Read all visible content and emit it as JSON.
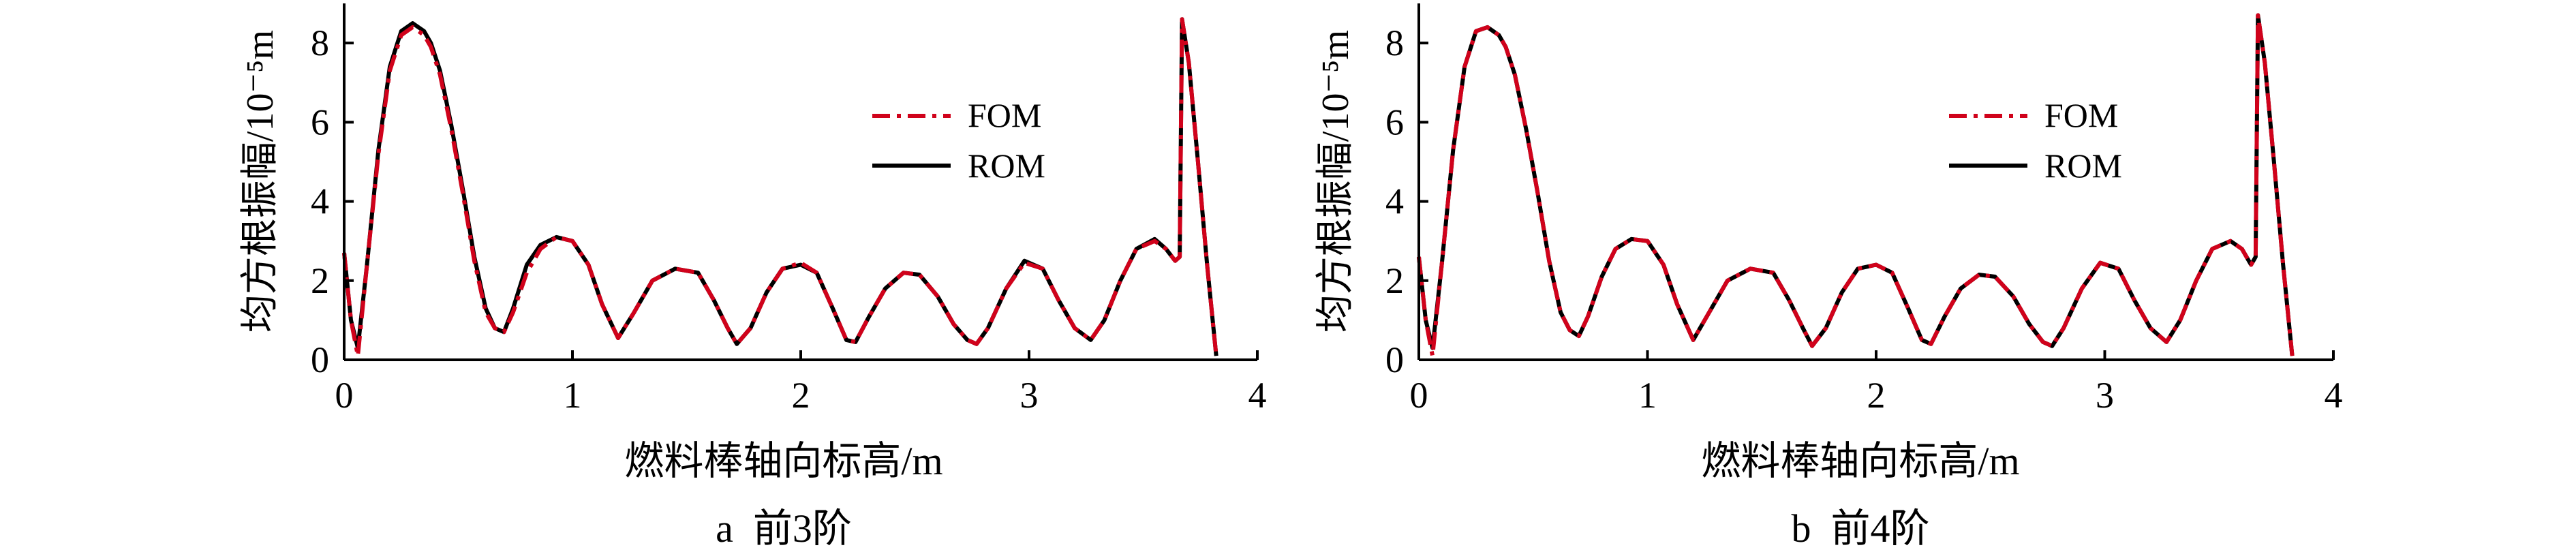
{
  "chart_data": [
    {
      "type": "line",
      "panel": "a",
      "caption": "a  前3阶",
      "xlabel": "燃料棒轴向标高/m",
      "ylabel": "均方根振幅/10⁻⁵m",
      "xlim": [
        0,
        4
      ],
      "ylim": [
        0,
        9
      ],
      "xticks": [
        "0",
        "1",
        "2",
        "3",
        "4"
      ],
      "yticks": [
        "0",
        "2",
        "4",
        "6",
        "8"
      ],
      "legend_position": "right",
      "grid": false,
      "series": [
        {
          "name": "FOM",
          "color": "#d0021b",
          "style": "dash-dot",
          "x": [
            0,
            0.03,
            0.06,
            0.1,
            0.15,
            0.2,
            0.25,
            0.3,
            0.35,
            0.38,
            0.42,
            0.47,
            0.52,
            0.57,
            0.62,
            0.66,
            0.7,
            0.74,
            0.8,
            0.86,
            0.93,
            1.0,
            1.07,
            1.13,
            1.2,
            1.27,
            1.35,
            1.45,
            1.55,
            1.62,
            1.68,
            1.72,
            1.78,
            1.85,
            1.92,
            2.0,
            2.07,
            2.14,
            2.2,
            2.24,
            2.3,
            2.37,
            2.45,
            2.52,
            2.6,
            2.67,
            2.73,
            2.77,
            2.82,
            2.9,
            2.98,
            3.06,
            3.13,
            3.2,
            3.27,
            3.33,
            3.4,
            3.47,
            3.55,
            3.6,
            3.64,
            3.66,
            3.67,
            3.7,
            3.74,
            3.78,
            3.82
          ],
          "y": [
            2.7,
            1.0,
            0.1,
            2.4,
            5.2,
            7.3,
            8.2,
            8.4,
            8.2,
            7.9,
            7.2,
            5.8,
            4.2,
            2.5,
            1.2,
            0.8,
            0.7,
            1.2,
            2.2,
            2.8,
            3.1,
            3.0,
            2.4,
            1.4,
            0.55,
            1.2,
            2.0,
            2.3,
            2.2,
            1.5,
            0.8,
            0.4,
            0.8,
            1.7,
            2.3,
            2.45,
            2.2,
            1.3,
            0.5,
            0.45,
            1.1,
            1.8,
            2.2,
            2.15,
            1.6,
            0.9,
            0.5,
            0.4,
            0.8,
            1.8,
            2.45,
            2.3,
            1.5,
            0.8,
            0.5,
            1.0,
            2.0,
            2.8,
            3.0,
            2.8,
            2.5,
            2.6,
            8.6,
            7.5,
            5.0,
            2.4,
            0.1
          ]
        },
        {
          "name": "ROM",
          "color": "#000000",
          "style": "solid",
          "x": [
            0,
            0.03,
            0.06,
            0.1,
            0.15,
            0.2,
            0.25,
            0.3,
            0.35,
            0.38,
            0.42,
            0.47,
            0.52,
            0.57,
            0.62,
            0.66,
            0.7,
            0.74,
            0.8,
            0.86,
            0.93,
            1.0,
            1.07,
            1.13,
            1.2,
            1.27,
            1.35,
            1.45,
            1.55,
            1.62,
            1.68,
            1.72,
            1.78,
            1.85,
            1.92,
            2.0,
            2.07,
            2.14,
            2.2,
            2.24,
            2.3,
            2.37,
            2.45,
            2.52,
            2.6,
            2.67,
            2.73,
            2.77,
            2.82,
            2.9,
            2.98,
            3.06,
            3.13,
            3.2,
            3.27,
            3.33,
            3.4,
            3.47,
            3.55,
            3.6,
            3.64,
            3.66,
            3.67,
            3.7,
            3.74,
            3.78,
            3.82
          ],
          "y": [
            2.7,
            1.0,
            0.3,
            2.4,
            5.3,
            7.4,
            8.3,
            8.5,
            8.3,
            8.0,
            7.3,
            5.9,
            4.3,
            2.6,
            1.3,
            0.8,
            0.7,
            1.3,
            2.4,
            2.9,
            3.1,
            3.0,
            2.4,
            1.4,
            0.55,
            1.2,
            2.0,
            2.3,
            2.2,
            1.5,
            0.8,
            0.4,
            0.8,
            1.7,
            2.3,
            2.4,
            2.2,
            1.3,
            0.5,
            0.45,
            1.1,
            1.8,
            2.2,
            2.15,
            1.6,
            0.9,
            0.5,
            0.4,
            0.8,
            1.8,
            2.5,
            2.3,
            1.5,
            0.8,
            0.5,
            1.0,
            2.0,
            2.8,
            3.05,
            2.8,
            2.5,
            2.6,
            8.6,
            7.5,
            5.0,
            2.4,
            0.1
          ]
        }
      ]
    },
    {
      "type": "line",
      "panel": "b",
      "caption": "b  前4阶",
      "xlabel": "燃料棒轴向标高/m",
      "ylabel": "均方根振幅/10⁻⁵m",
      "xlim": [
        0,
        4
      ],
      "ylim": [
        0,
        9
      ],
      "xticks": [
        "0",
        "1",
        "2",
        "3",
        "4"
      ],
      "yticks": [
        "0",
        "2",
        "4",
        "6",
        "8"
      ],
      "legend_position": "right",
      "grid": false,
      "series": [
        {
          "name": "FOM",
          "color": "#d0021b",
          "style": "dash-dot",
          "x": [
            0,
            0.03,
            0.06,
            0.1,
            0.15,
            0.2,
            0.25,
            0.3,
            0.35,
            0.38,
            0.42,
            0.47,
            0.52,
            0.57,
            0.62,
            0.66,
            0.7,
            0.74,
            0.8,
            0.86,
            0.93,
            1.0,
            1.07,
            1.13,
            1.2,
            1.27,
            1.35,
            1.45,
            1.55,
            1.62,
            1.68,
            1.72,
            1.78,
            1.85,
            1.92,
            2.0,
            2.07,
            2.14,
            2.2,
            2.24,
            2.3,
            2.37,
            2.45,
            2.52,
            2.6,
            2.67,
            2.73,
            2.77,
            2.82,
            2.9,
            2.98,
            3.06,
            3.13,
            3.2,
            3.27,
            3.33,
            3.4,
            3.47,
            3.55,
            3.6,
            3.64,
            3.66,
            3.67,
            3.7,
            3.74,
            3.78,
            3.82
          ],
          "y": [
            2.6,
            1.0,
            0.1,
            2.4,
            5.3,
            7.4,
            8.3,
            8.4,
            8.2,
            7.9,
            7.2,
            5.8,
            4.2,
            2.5,
            1.2,
            0.75,
            0.6,
            1.1,
            2.1,
            2.8,
            3.05,
            3.0,
            2.4,
            1.4,
            0.5,
            1.2,
            2.0,
            2.3,
            2.2,
            1.5,
            0.8,
            0.35,
            0.8,
            1.7,
            2.3,
            2.4,
            2.2,
            1.3,
            0.5,
            0.4,
            1.1,
            1.8,
            2.15,
            2.1,
            1.6,
            0.9,
            0.45,
            0.35,
            0.8,
            1.8,
            2.45,
            2.3,
            1.5,
            0.8,
            0.45,
            1.0,
            2.0,
            2.8,
            3.0,
            2.8,
            2.4,
            2.6,
            8.7,
            7.5,
            5.0,
            2.4,
            0.1
          ]
        },
        {
          "name": "ROM",
          "color": "#000000",
          "style": "solid",
          "x": [
            0,
            0.03,
            0.06,
            0.1,
            0.15,
            0.2,
            0.25,
            0.3,
            0.35,
            0.38,
            0.42,
            0.47,
            0.52,
            0.57,
            0.62,
            0.66,
            0.7,
            0.74,
            0.8,
            0.86,
            0.93,
            1.0,
            1.07,
            1.13,
            1.2,
            1.27,
            1.35,
            1.45,
            1.55,
            1.62,
            1.68,
            1.72,
            1.78,
            1.85,
            1.92,
            2.0,
            2.07,
            2.14,
            2.2,
            2.24,
            2.3,
            2.37,
            2.45,
            2.52,
            2.6,
            2.67,
            2.73,
            2.77,
            2.82,
            2.9,
            2.98,
            3.06,
            3.13,
            3.2,
            3.27,
            3.33,
            3.4,
            3.47,
            3.55,
            3.6,
            3.64,
            3.66,
            3.67,
            3.7,
            3.74,
            3.78,
            3.82
          ],
          "y": [
            2.6,
            1.0,
            0.3,
            2.4,
            5.3,
            7.4,
            8.3,
            8.4,
            8.2,
            7.9,
            7.2,
            5.8,
            4.2,
            2.5,
            1.2,
            0.75,
            0.6,
            1.1,
            2.1,
            2.8,
            3.05,
            3.0,
            2.4,
            1.4,
            0.5,
            1.2,
            2.0,
            2.3,
            2.2,
            1.5,
            0.8,
            0.35,
            0.8,
            1.7,
            2.3,
            2.4,
            2.2,
            1.3,
            0.5,
            0.4,
            1.1,
            1.8,
            2.15,
            2.1,
            1.6,
            0.9,
            0.45,
            0.35,
            0.8,
            1.8,
            2.45,
            2.3,
            1.5,
            0.8,
            0.45,
            1.0,
            2.0,
            2.8,
            3.0,
            2.8,
            2.4,
            2.6,
            8.7,
            7.5,
            5.0,
            2.4,
            0.1
          ]
        }
      ]
    }
  ]
}
